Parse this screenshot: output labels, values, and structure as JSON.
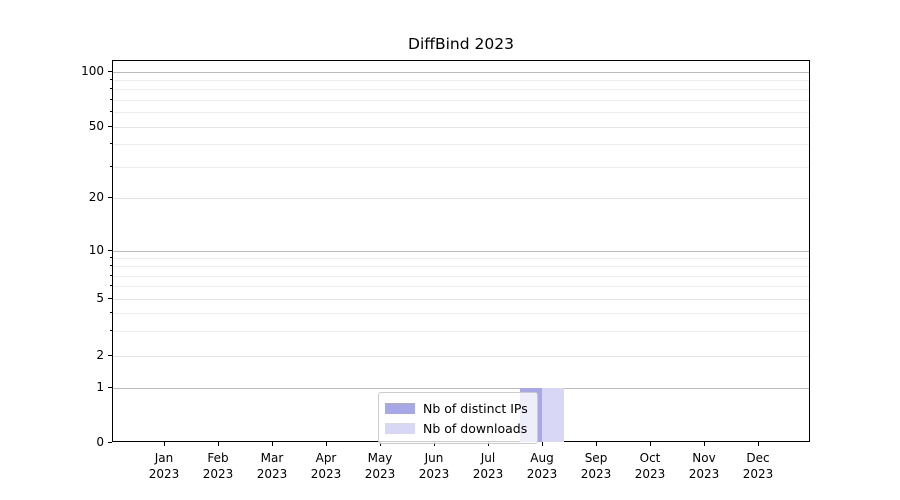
{
  "title": "DiffBind 2023",
  "legend": {
    "items": [
      {
        "label": "Nb of distinct IPs",
        "color": "#a8a8e9"
      },
      {
        "label": "Nb of downloads",
        "color": "#d8d8f6"
      }
    ]
  },
  "axes": {
    "y_labeled_ticks": [
      0,
      1,
      2,
      5,
      10,
      20,
      50,
      100
    ],
    "y_major_grid_values": [
      1,
      10,
      100
    ],
    "y_sub_grid_values": [
      2,
      5,
      20,
      50
    ],
    "y_minor_grid_values": [
      3,
      4,
      6,
      7,
      8,
      9,
      30,
      40,
      60,
      70,
      80,
      90
    ],
    "x_months": [
      "Jan",
      "Feb",
      "Mar",
      "Apr",
      "May",
      "Jun",
      "Jul",
      "Aug",
      "Sep",
      "Oct",
      "Nov",
      "Dec"
    ],
    "x_year": "2023"
  },
  "chart_data": {
    "type": "bar",
    "title": "DiffBind 2023",
    "categories": [
      "Jan 2023",
      "Feb 2023",
      "Mar 2023",
      "Apr 2023",
      "May 2023",
      "Jun 2023",
      "Jul 2023",
      "Aug 2023",
      "Sep 2023",
      "Oct 2023",
      "Nov 2023",
      "Dec 2023"
    ],
    "series": [
      {
        "name": "Nb of distinct IPs",
        "color": "#a8a8e9",
        "values": [
          0,
          0,
          0,
          0,
          0,
          0,
          0,
          1,
          0,
          0,
          0,
          0
        ]
      },
      {
        "name": "Nb of downloads",
        "color": "#d8d8f6",
        "values": [
          0,
          0,
          0,
          0,
          0,
          0,
          0,
          1,
          0,
          0,
          0,
          0
        ]
      }
    ],
    "xlabel": "",
    "ylabel": "",
    "yscale": "symlog",
    "yticks": [
      0,
      1,
      2,
      5,
      10,
      20,
      50,
      100
    ],
    "ylim": [
      0,
      115
    ],
    "grid": true,
    "legend_position": "lower center"
  },
  "colors": {
    "background": "#ffffff",
    "spine": "#000000",
    "major_grid": "#bcbcbc",
    "sub_grid": "#e4e4e4",
    "minor_grid": "#ededed",
    "bar_distinct_ips": "#a8a8e9",
    "bar_downloads": "#d8d8f6"
  }
}
